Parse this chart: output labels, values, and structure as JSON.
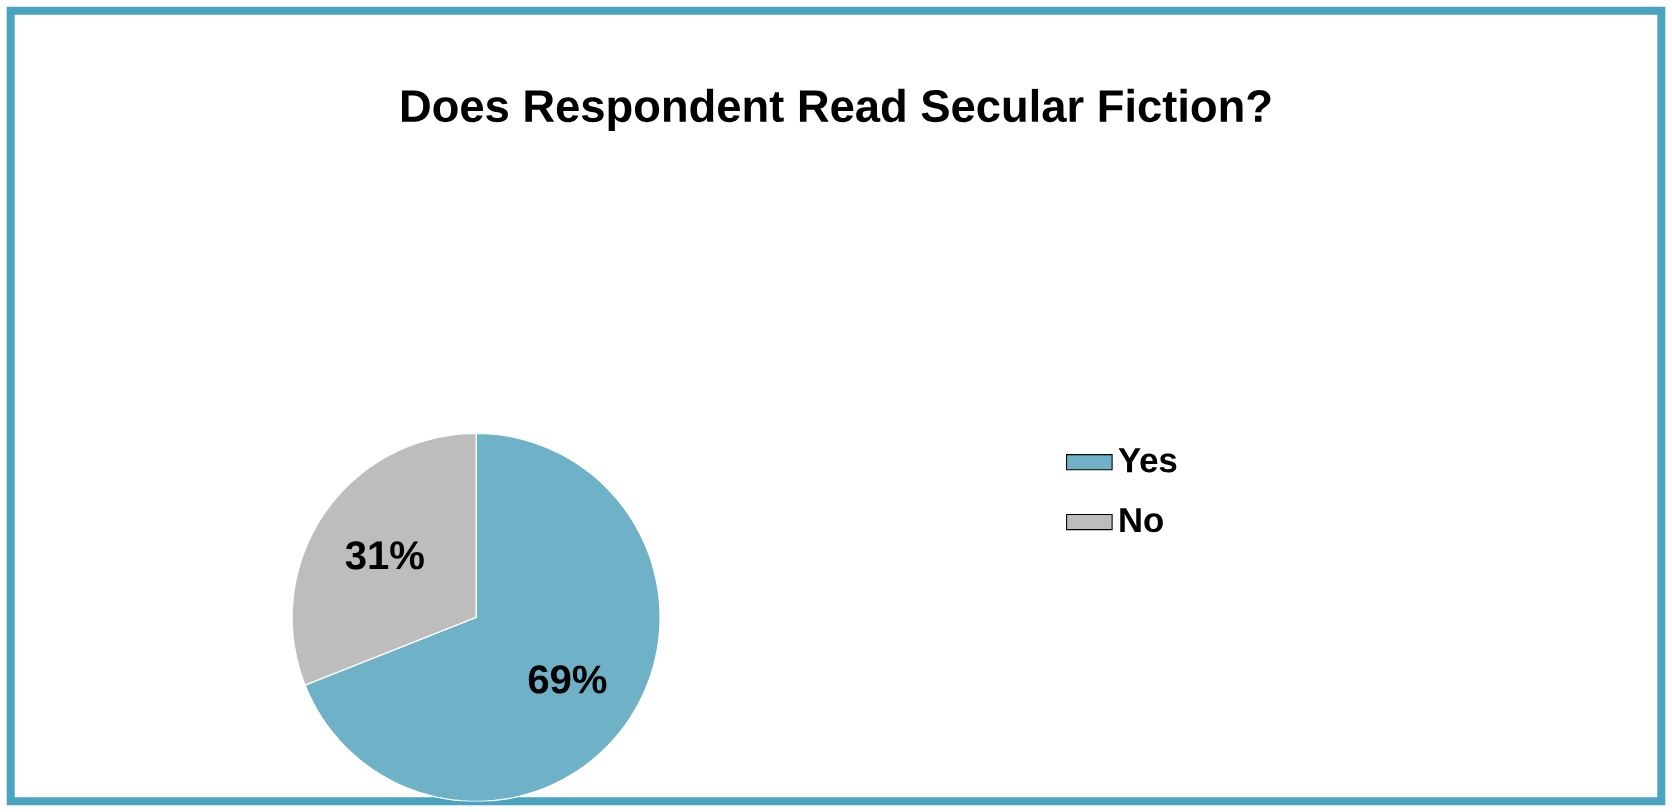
{
  "chart_data": {
    "type": "pie",
    "title": "Does Respondent Read Secular Fiction?",
    "categories": [
      "Yes",
      "No"
    ],
    "values": [
      69,
      31
    ],
    "value_labels": [
      "69%",
      "31%"
    ],
    "colors": [
      "#6fb2c8",
      "#bdbdbd"
    ],
    "legend": "right"
  }
}
